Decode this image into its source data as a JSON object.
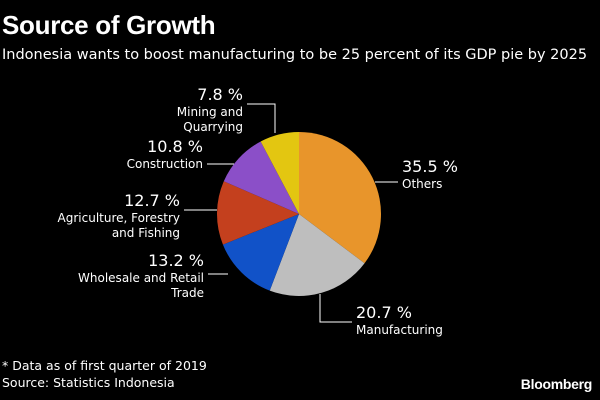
{
  "header": {
    "title": "Source of Growth",
    "subtitle": "Indonesia wants to boost manufacturing to be 25 percent of its GDP pie by 2025"
  },
  "footer": {
    "note": "* Data as of first quarter of 2019",
    "source": "Source: Statistics Indonesia",
    "brand": "Bloomberg"
  },
  "chart_data": {
    "type": "pie",
    "start_angle_deg": 0,
    "direction": "clockwise",
    "slices": [
      {
        "label": "Others",
        "value": 35.5,
        "value_label": "35.5 %",
        "color": "#E8952B"
      },
      {
        "label": "Manufacturing",
        "value": 20.7,
        "value_label": "20.7 %",
        "color": "#BEBEBE"
      },
      {
        "label": "Wholesale and Retail Trade",
        "value": 13.2,
        "value_label": "13.2 %",
        "color": "#1152C8"
      },
      {
        "label": "Agriculture, Forestry and Fishing",
        "value": 12.7,
        "value_label": "12.7 %",
        "color": "#C4401E"
      },
      {
        "label": "Construction",
        "value": 10.8,
        "value_label": "10.8 %",
        "color": "#8B4FC8"
      },
      {
        "label": "Mining and Quarrying",
        "value": 7.8,
        "value_label": "7.8 %",
        "color": "#E3C611"
      }
    ]
  }
}
